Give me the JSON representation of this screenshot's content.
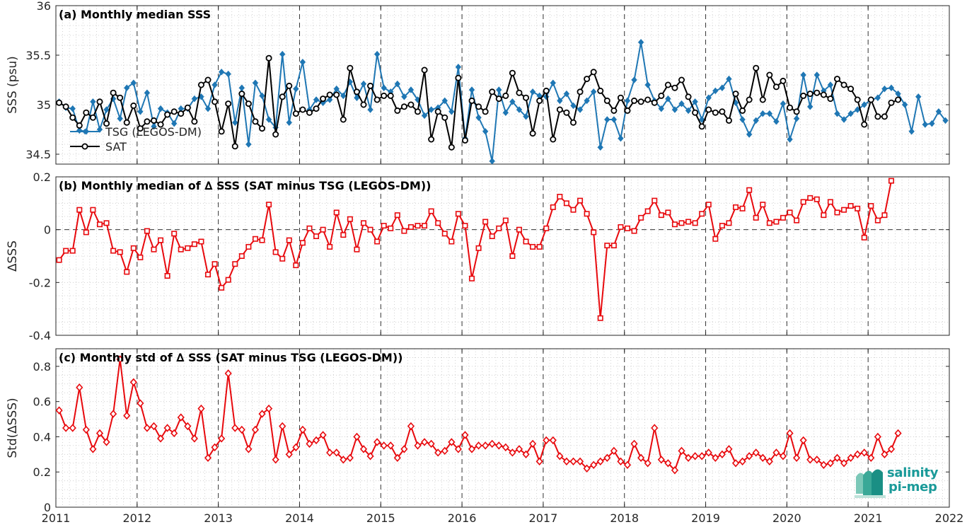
{
  "chart_data": [
    {
      "type": "line",
      "title": "(a) Monthly median SSS",
      "ylabel": "SSS (psu)",
      "xlim": [
        2011,
        2022
      ],
      "ylim": [
        34.4,
        36
      ],
      "yticks": [
        "34.5",
        "35",
        "35.5",
        "36"
      ],
      "x_ticks": [
        "2011",
        "2012",
        "2013",
        "2014",
        "2015",
        "2016",
        "2017",
        "2018",
        "2019",
        "2020",
        "2021",
        "2022"
      ],
      "grid": true,
      "legend_position": "lower-left",
      "colors": {
        "tsg": "#1f77b4",
        "sat": "#000000"
      },
      "x_start": 2011.04,
      "x_step": 0.0833,
      "series": [
        {
          "name": "TSG (LEGOS-DM)",
          "marker": "diamond",
          "values": [
            35.03,
            34.97,
            34.96,
            34.74,
            34.73,
            35.03,
            34.75,
            34.95,
            35.06,
            34.86,
            35.17,
            35.22,
            34.93,
            35.12,
            34.78,
            34.96,
            34.92,
            34.81,
            34.96,
            34.96,
            35.06,
            35.08,
            34.96,
            35.2,
            35.33,
            35.31,
            34.82,
            35.17,
            34.6,
            35.22,
            35.09,
            34.85,
            34.77,
            35.51,
            34.82,
            35.16,
            35.43,
            34.95,
            35.05,
            35.02,
            35.05,
            35.16,
            35.09,
            35.23,
            35.07,
            35.21,
            34.95,
            35.51,
            35.17,
            35.13,
            35.21,
            35.08,
            35.15,
            35.05,
            34.89,
            34.95,
            34.97,
            35.04,
            34.93,
            35.38,
            34.66,
            35.15,
            34.87,
            34.73,
            34.43,
            35.15,
            34.92,
            35.03,
            34.95,
            34.88,
            35.13,
            35.09,
            35.08,
            35.22,
            35.04,
            35.11,
            34.99,
            34.95,
            35.04,
            35.13,
            34.57,
            34.85,
            34.85,
            34.66,
            35.04,
            35.25,
            35.63,
            35.2,
            35.04,
            34.96,
            35.06,
            34.95,
            35.01,
            34.94,
            35.03,
            34.85,
            35.07,
            35.14,
            35.17,
            35.26,
            35.02,
            34.85,
            34.7,
            34.84,
            34.91,
            34.91,
            34.83,
            35.01,
            34.65,
            34.86,
            35.3,
            34.98,
            35.3,
            35.14,
            35.2,
            34.91,
            34.85,
            34.91,
            34.95,
            35.0,
            35.05,
            35.07,
            35.16,
            35.17,
            35.11,
            35.0,
            34.73,
            35.08,
            34.8,
            34.81,
            34.93,
            34.84
          ]
        },
        {
          "name": "SAT",
          "marker": "circle",
          "values": [
            35.02,
            34.98,
            34.87,
            34.79,
            34.92,
            34.87,
            35.03,
            34.81,
            35.12,
            35.07,
            34.82,
            34.99,
            34.76,
            34.83,
            34.84,
            34.8,
            34.9,
            34.93,
            34.91,
            34.97,
            34.83,
            35.2,
            35.25,
            35.03,
            34.73,
            35.01,
            34.58,
            35.11,
            35.01,
            34.83,
            34.76,
            35.47,
            34.7,
            35.08,
            35.19,
            34.91,
            34.95,
            34.92,
            34.96,
            35.06,
            35.1,
            35.1,
            34.85,
            35.37,
            35.13,
            35.0,
            35.19,
            35.05,
            35.09,
            35.09,
            34.94,
            34.98,
            35.0,
            34.93,
            35.35,
            34.65,
            34.93,
            34.87,
            34.57,
            35.27,
            34.64,
            35.04,
            34.98,
            34.93,
            35.13,
            35.06,
            35.09,
            35.32,
            35.12,
            35.07,
            34.71,
            35.04,
            35.14,
            34.65,
            34.95,
            34.92,
            34.82,
            35.13,
            35.26,
            35.33,
            35.14,
            35.04,
            34.94,
            35.07,
            34.94,
            35.04,
            35.03,
            35.05,
            35.02,
            35.09,
            35.2,
            35.17,
            35.25,
            35.08,
            34.92,
            34.78,
            34.95,
            34.92,
            34.93,
            34.84,
            35.11,
            34.94,
            35.05,
            35.37,
            35.05,
            35.3,
            35.18,
            35.24,
            34.97,
            34.93,
            35.09,
            35.11,
            35.12,
            35.1,
            35.06,
            35.26,
            35.2,
            35.16,
            35.05,
            34.8,
            35.05,
            34.88,
            34.88,
            35.02,
            35.05
          ]
        }
      ]
    },
    {
      "type": "line",
      "title": "(b) Monthly median of ∆ SSS (SAT minus TSG (LEGOS-DM))",
      "ylabel": "∆SSS",
      "xlim": [
        2011,
        2022
      ],
      "ylim": [
        -0.4,
        0.2
      ],
      "yticks": [
        "-0.4",
        "-0.2",
        "0",
        "0.2"
      ],
      "grid": true,
      "zero_line": true,
      "colors": {
        "line": "#e8090d"
      },
      "x_start": 2011.04,
      "x_step": 0.0833,
      "series": [
        {
          "name": "",
          "marker": "square",
          "values": [
            -0.115,
            -0.08,
            -0.08,
            0.075,
            -0.01,
            0.075,
            0.02,
            0.025,
            -0.08,
            -0.085,
            -0.16,
            -0.07,
            -0.105,
            -0.005,
            -0.075,
            -0.04,
            -0.175,
            -0.015,
            -0.075,
            -0.07,
            -0.055,
            -0.045,
            -0.17,
            -0.13,
            -0.22,
            -0.19,
            -0.13,
            -0.1,
            -0.065,
            -0.035,
            -0.04,
            0.095,
            -0.085,
            -0.11,
            -0.04,
            -0.135,
            -0.05,
            0.005,
            -0.025,
            0.0,
            -0.065,
            0.065,
            -0.02,
            0.04,
            -0.075,
            0.025,
            0.0,
            -0.045,
            0.015,
            0.005,
            0.055,
            -0.005,
            0.01,
            0.015,
            0.015,
            0.07,
            0.025,
            -0.015,
            -0.045,
            0.06,
            0.015,
            -0.185,
            -0.07,
            0.03,
            -0.025,
            0.005,
            0.035,
            -0.1,
            0.0,
            -0.045,
            -0.065,
            -0.065,
            0.005,
            0.085,
            0.125,
            0.1,
            0.075,
            0.11,
            0.06,
            -0.01,
            -0.335,
            -0.06,
            -0.06,
            0.01,
            0.005,
            -0.005,
            0.045,
            0.07,
            0.11,
            0.055,
            0.065,
            0.02,
            0.025,
            0.03,
            0.025,
            0.06,
            0.095,
            -0.035,
            0.015,
            0.025,
            0.085,
            0.08,
            0.15,
            0.045,
            0.095,
            0.025,
            0.03,
            0.045,
            0.065,
            0.035,
            0.105,
            0.12,
            0.115,
            0.055,
            0.105,
            0.065,
            0.075,
            0.09,
            0.08,
            -0.03,
            0.09,
            0.035,
            0.055,
            0.185
          ]
        }
      ]
    },
    {
      "type": "line",
      "title": "(c) Monthly std of ∆ SSS (SAT minus TSG (LEGOS-DM))",
      "ylabel": "Std(∆SSS)",
      "xlim": [
        2011,
        2022
      ],
      "ylim": [
        0,
        0.9
      ],
      "yticks": [
        "0",
        "0.2",
        "0.4",
        "0.6",
        "0.8"
      ],
      "grid": true,
      "colors": {
        "line": "#e8090d"
      },
      "x_start": 2011.04,
      "x_step": 0.0833,
      "series": [
        {
          "name": "",
          "marker": "diamond",
          "values": [
            0.55,
            0.45,
            0.45,
            0.68,
            0.44,
            0.33,
            0.42,
            0.37,
            0.53,
            0.84,
            0.52,
            0.71,
            0.59,
            0.45,
            0.46,
            0.39,
            0.45,
            0.42,
            0.51,
            0.46,
            0.39,
            0.56,
            0.28,
            0.34,
            0.39,
            0.76,
            0.45,
            0.44,
            0.33,
            0.44,
            0.53,
            0.56,
            0.27,
            0.46,
            0.3,
            0.34,
            0.44,
            0.36,
            0.38,
            0.41,
            0.31,
            0.31,
            0.27,
            0.28,
            0.4,
            0.33,
            0.29,
            0.37,
            0.35,
            0.35,
            0.28,
            0.33,
            0.46,
            0.35,
            0.37,
            0.36,
            0.31,
            0.32,
            0.37,
            0.33,
            0.41,
            0.33,
            0.35,
            0.35,
            0.36,
            0.35,
            0.34,
            0.31,
            0.33,
            0.3,
            0.36,
            0.26,
            0.38,
            0.38,
            0.29,
            0.26,
            0.26,
            0.26,
            0.22,
            0.24,
            0.26,
            0.28,
            0.32,
            0.26,
            0.24,
            0.36,
            0.28,
            0.25,
            0.45,
            0.27,
            0.25,
            0.21,
            0.32,
            0.28,
            0.29,
            0.29,
            0.31,
            0.28,
            0.3,
            0.33,
            0.25,
            0.26,
            0.29,
            0.31,
            0.28,
            0.26,
            0.31,
            0.29,
            0.42,
            0.28,
            0.38,
            0.27,
            0.27,
            0.24,
            0.25,
            0.28,
            0.25,
            0.28,
            0.3,
            0.31,
            0.28,
            0.4,
            0.3,
            0.33,
            0.42
          ]
        }
      ]
    }
  ],
  "logo": {
    "line1": "salinity",
    "line2": "pi-mep",
    "icon": "salinity-wave-icon",
    "color": "#1a9a99"
  }
}
